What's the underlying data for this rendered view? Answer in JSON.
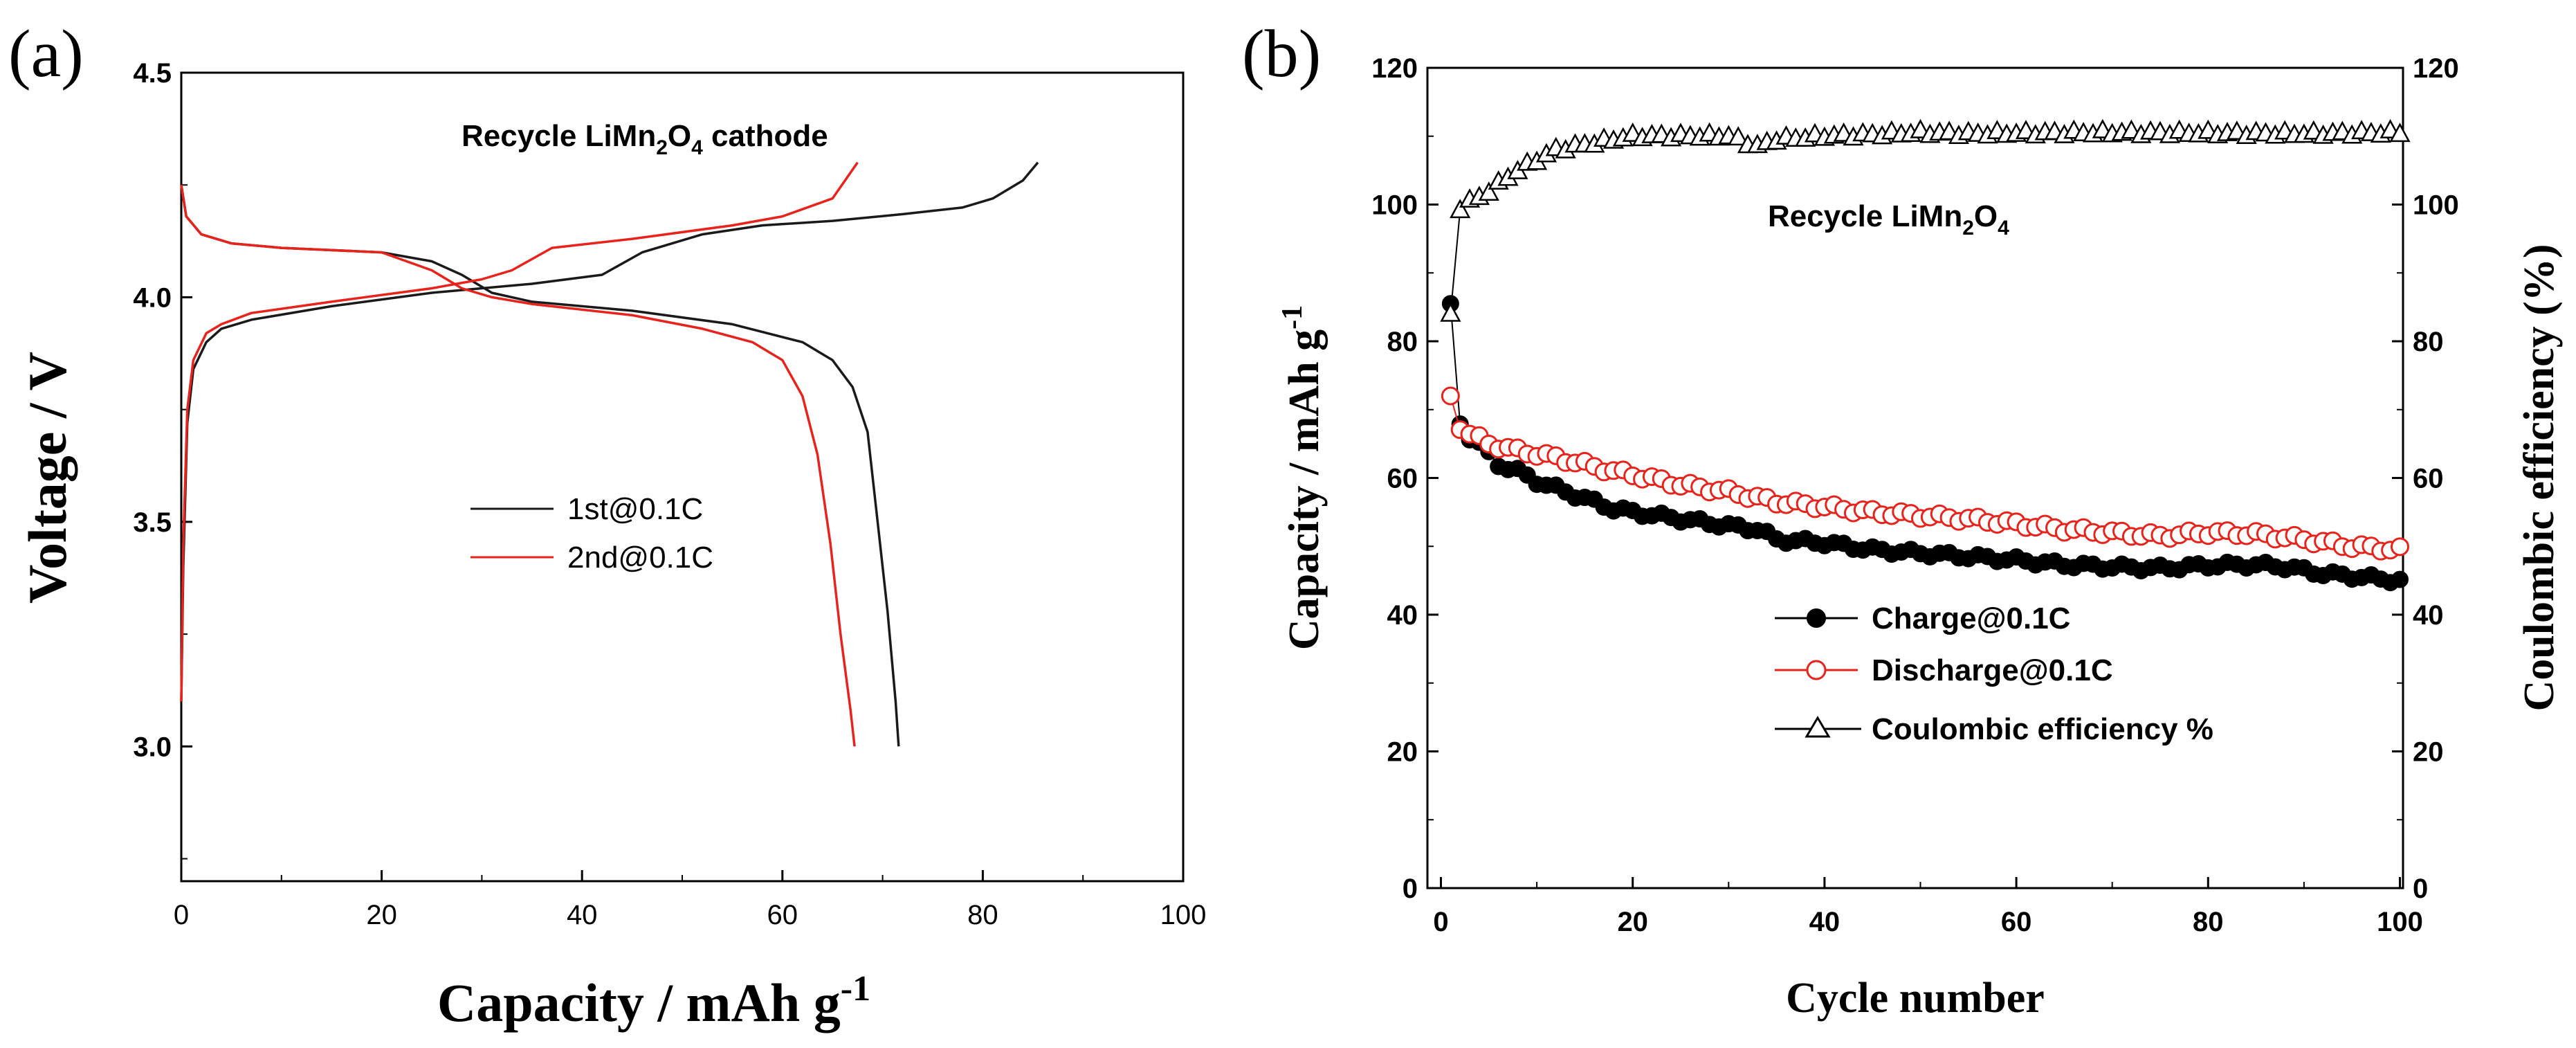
{
  "chart_data": [
    {
      "panel_label": "(a)",
      "type": "line",
      "title": "Recycle LiMn2O4 cathode",
      "title_parts": {
        "pre": "Recycle LiMn",
        "sub1": "2",
        "mid": "O",
        "sub2": "4",
        "post": " cathode"
      },
      "xlabel": "Capacity / mAh g",
      "xlabel_sup": "-1",
      "ylabel": "Voltage / V",
      "xlim": [
        0,
        100
      ],
      "ylim": [
        2.7,
        4.5
      ],
      "xticks": [
        "0",
        "20",
        "40",
        "60",
        "80",
        "100"
      ],
      "yticks": [
        "3.0",
        "3.5",
        "4.0",
        "4.5"
      ],
      "legend": [
        "1st@0.1C",
        "2nd@0.1C"
      ],
      "series": [
        {
          "name": "1st@0.1C",
          "color": "#1a1a1a",
          "charge": [
            [
              0,
              3.1
            ],
            [
              0.2,
              3.4
            ],
            [
              0.6,
              3.72
            ],
            [
              1.2,
              3.84
            ],
            [
              2.5,
              3.9
            ],
            [
              4,
              3.93
            ],
            [
              7,
              3.95
            ],
            [
              15,
              3.98
            ],
            [
              25,
              4.01
            ],
            [
              35,
              4.03
            ],
            [
              42,
              4.05
            ],
            [
              46,
              4.1
            ],
            [
              52,
              4.14
            ],
            [
              58,
              4.16
            ],
            [
              65,
              4.17
            ],
            [
              72,
              4.185
            ],
            [
              78,
              4.2
            ],
            [
              81,
              4.22
            ],
            [
              84,
              4.26
            ],
            [
              85.5,
              4.3
            ]
          ],
          "discharge": [
            [
              0,
              4.25
            ],
            [
              0.5,
              4.18
            ],
            [
              2,
              4.14
            ],
            [
              5,
              4.12
            ],
            [
              10,
              4.11
            ],
            [
              20,
              4.1
            ],
            [
              25,
              4.08
            ],
            [
              28,
              4.05
            ],
            [
              31,
              4.01
            ],
            [
              35,
              3.99
            ],
            [
              45,
              3.97
            ],
            [
              55,
              3.94
            ],
            [
              62,
              3.9
            ],
            [
              65,
              3.86
            ],
            [
              67,
              3.8
            ],
            [
              68.5,
              3.7
            ],
            [
              69.5,
              3.5
            ],
            [
              70.5,
              3.3
            ],
            [
              71.3,
              3.1
            ],
            [
              71.6,
              3.0
            ]
          ]
        },
        {
          "name": "2nd@0.1C",
          "color": "#e8231c",
          "charge": [
            [
              0,
              3.1
            ],
            [
              0.2,
              3.45
            ],
            [
              0.6,
              3.75
            ],
            [
              1.2,
              3.86
            ],
            [
              2.5,
              3.92
            ],
            [
              4,
              3.94
            ],
            [
              7,
              3.965
            ],
            [
              15,
              3.99
            ],
            [
              25,
              4.02
            ],
            [
              30,
              4.04
            ],
            [
              33,
              4.06
            ],
            [
              37,
              4.11
            ],
            [
              45,
              4.13
            ],
            [
              55,
              4.16
            ],
            [
              60,
              4.18
            ],
            [
              65,
              4.22
            ],
            [
              67.5,
              4.3
            ]
          ],
          "discharge": [
            [
              0,
              4.25
            ],
            [
              0.5,
              4.18
            ],
            [
              2,
              4.14
            ],
            [
              5,
              4.12
            ],
            [
              10,
              4.11
            ],
            [
              20,
              4.1
            ],
            [
              25,
              4.06
            ],
            [
              28,
              4.02
            ],
            [
              31,
              4.0
            ],
            [
              35,
              3.985
            ],
            [
              45,
              3.96
            ],
            [
              52,
              3.93
            ],
            [
              57,
              3.9
            ],
            [
              60,
              3.86
            ],
            [
              62,
              3.78
            ],
            [
              63.5,
              3.65
            ],
            [
              64.8,
              3.45
            ],
            [
              65.8,
              3.25
            ],
            [
              66.8,
              3.08
            ],
            [
              67.2,
              3.0
            ]
          ]
        }
      ]
    },
    {
      "panel_label": "(b)",
      "type": "scatter",
      "title": "Recycle LiMn2O4",
      "title_parts": {
        "pre": "Recycle LiMn",
        "sub1": "2",
        "mid": "O",
        "sub2": "4",
        "post": ""
      },
      "xlabel": "Cycle number",
      "ylabel": "Capacity / mAh g",
      "ylabel_sup": "-1",
      "y2label": "Coulombic efficiency (%)",
      "xlim": [
        0,
        100
      ],
      "ylim": [
        0,
        120
      ],
      "y2lim": [
        0,
        120
      ],
      "xticks": [
        "0",
        "20",
        "40",
        "60",
        "80",
        "100"
      ],
      "yticks": [
        "0",
        "20",
        "40",
        "60",
        "80",
        "100",
        "120"
      ],
      "y2ticks": [
        "0",
        "20",
        "40",
        "60",
        "80",
        "100",
        "120"
      ],
      "legend": [
        "Charge@0.1C",
        "Discharge@0.1C",
        "Coulombic efficiency %"
      ],
      "series": [
        {
          "name": "Charge@0.1C",
          "color": "#000000",
          "marker": "filled-circle",
          "anchors": [
            [
              1,
              85.5
            ],
            [
              2,
              68
            ],
            [
              3,
              66
            ],
            [
              4,
              65
            ],
            [
              6,
              62
            ],
            [
              8,
              61
            ],
            [
              10,
              59.5
            ],
            [
              12,
              58.5
            ],
            [
              15,
              57
            ],
            [
              18,
              55.5
            ],
            [
              20,
              55
            ],
            [
              25,
              54
            ],
            [
              30,
              53
            ],
            [
              33,
              52.5
            ],
            [
              35,
              51
            ],
            [
              40,
              50.5
            ],
            [
              45,
              49.5
            ],
            [
              50,
              49
            ],
            [
              55,
              48.5
            ],
            [
              60,
              48
            ],
            [
              65,
              47.3
            ],
            [
              70,
              47
            ],
            [
              75,
              46.8
            ],
            [
              80,
              47.2
            ],
            [
              85,
              47.3
            ],
            [
              88,
              47
            ],
            [
              92,
              46
            ],
            [
              96,
              45.5
            ],
            [
              100,
              45
            ]
          ]
        },
        {
          "name": "Discharge@0.1C",
          "color": "#e8231c",
          "marker": "open-circle",
          "anchors": [
            [
              1,
              72
            ],
            [
              2,
              67.5
            ],
            [
              3,
              66.5
            ],
            [
              5,
              65
            ],
            [
              8,
              64
            ],
            [
              10,
              63.5
            ],
            [
              12,
              63
            ],
            [
              15,
              62
            ],
            [
              18,
              61
            ],
            [
              20,
              60.5
            ],
            [
              25,
              59
            ],
            [
              30,
              58
            ],
            [
              35,
              56.5
            ],
            [
              40,
              55.8
            ],
            [
              45,
              55
            ],
            [
              50,
              54.5
            ],
            [
              55,
              54
            ],
            [
              60,
              53.3
            ],
            [
              65,
              52.5
            ],
            [
              70,
              52
            ],
            [
              75,
              51.5
            ],
            [
              80,
              52
            ],
            [
              85,
              51.8
            ],
            [
              90,
              51
            ],
            [
              95,
              50
            ],
            [
              100,
              49.5
            ]
          ]
        },
        {
          "name": "Coulombic efficiency %",
          "color": "#000000",
          "marker": "open-triangle",
          "axis": "right",
          "anchors": [
            [
              1,
              84
            ],
            [
              2,
              99.5
            ],
            [
              3,
              100.5
            ],
            [
              4,
              101
            ],
            [
              5,
              102
            ],
            [
              6,
              103
            ],
            [
              8,
              105
            ],
            [
              10,
              106.5
            ],
            [
              12,
              108
            ],
            [
              14,
              108.5
            ],
            [
              16,
              109
            ],
            [
              18,
              109.5
            ],
            [
              20,
              110
            ],
            [
              25,
              110
            ],
            [
              30,
              110
            ],
            [
              33,
              108.5
            ],
            [
              35,
              109.5
            ],
            [
              40,
              110
            ],
            [
              45,
              110.2
            ],
            [
              50,
              110.5
            ],
            [
              55,
              110.3
            ],
            [
              60,
              110.4
            ],
            [
              70,
              110.5
            ],
            [
              80,
              110.4
            ],
            [
              90,
              110.3
            ],
            [
              100,
              110.5
            ]
          ]
        }
      ]
    }
  ]
}
